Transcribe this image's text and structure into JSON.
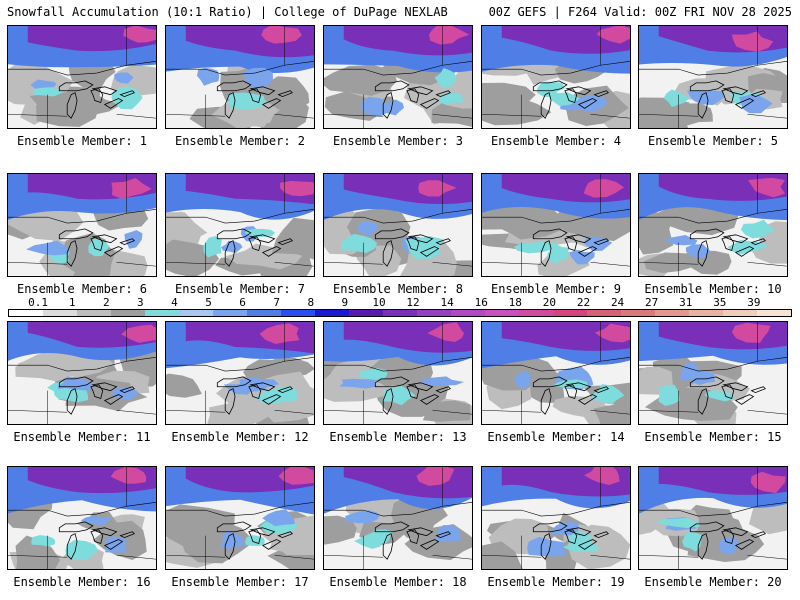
{
  "header": {
    "left_title": "Snowfall Accumulation (10:1 Ratio) | College of DuPage NEXLAB",
    "right_title": "00Z GEFS | F264 Valid: 00Z FRI NOV 28 2025"
  },
  "legend": {
    "labels": [
      "0.1",
      "1",
      "2",
      "3",
      "4",
      "5",
      "6",
      "7",
      "8",
      "9",
      "10",
      "12",
      "14",
      "16",
      "18",
      "20",
      "22",
      "24",
      "27",
      "31",
      "35",
      "39"
    ],
    "colors": [
      "#ffffff",
      "#dcdcdc",
      "#bdbdbd",
      "#9e9e9e",
      "#7fdcdc",
      "#a7c7f0",
      "#7aa4ec",
      "#4f7fe6",
      "#2a4ff0",
      "#1a1ad2",
      "#5a1ab0",
      "#7a2fb8",
      "#9540c0",
      "#b04ac4",
      "#c84fbd",
      "#d24aa0",
      "#d4457f",
      "#d85f78",
      "#dc7a7a",
      "#e29a8a",
      "#e8b4a0",
      "#f0cdb8",
      "#f7e3d2"
    ]
  },
  "members": [
    {
      "label": "Ensemble Member: 1"
    },
    {
      "label": "Ensemble Member: 2"
    },
    {
      "label": "Ensemble Member: 3"
    },
    {
      "label": "Ensemble Member: 4"
    },
    {
      "label": "Ensemble Member: 5"
    },
    {
      "label": "Ensemble Member: 6"
    },
    {
      "label": "Ensemble Member: 7"
    },
    {
      "label": "Ensemble Member: 8"
    },
    {
      "label": "Ensemble Member: 9"
    },
    {
      "label": "Ensemble Member: 10"
    },
    {
      "label": "Ensemble Member: 11"
    },
    {
      "label": "Ensemble Member: 12"
    },
    {
      "label": "Ensemble Member: 13"
    },
    {
      "label": "Ensemble Member: 14"
    },
    {
      "label": "Ensemble Member: 15"
    },
    {
      "label": "Ensemble Member: 16"
    },
    {
      "label": "Ensemble Member: 17"
    },
    {
      "label": "Ensemble Member: 18"
    },
    {
      "label": "Ensemble Member: 19"
    },
    {
      "label": "Ensemble Member: 20"
    }
  ]
}
